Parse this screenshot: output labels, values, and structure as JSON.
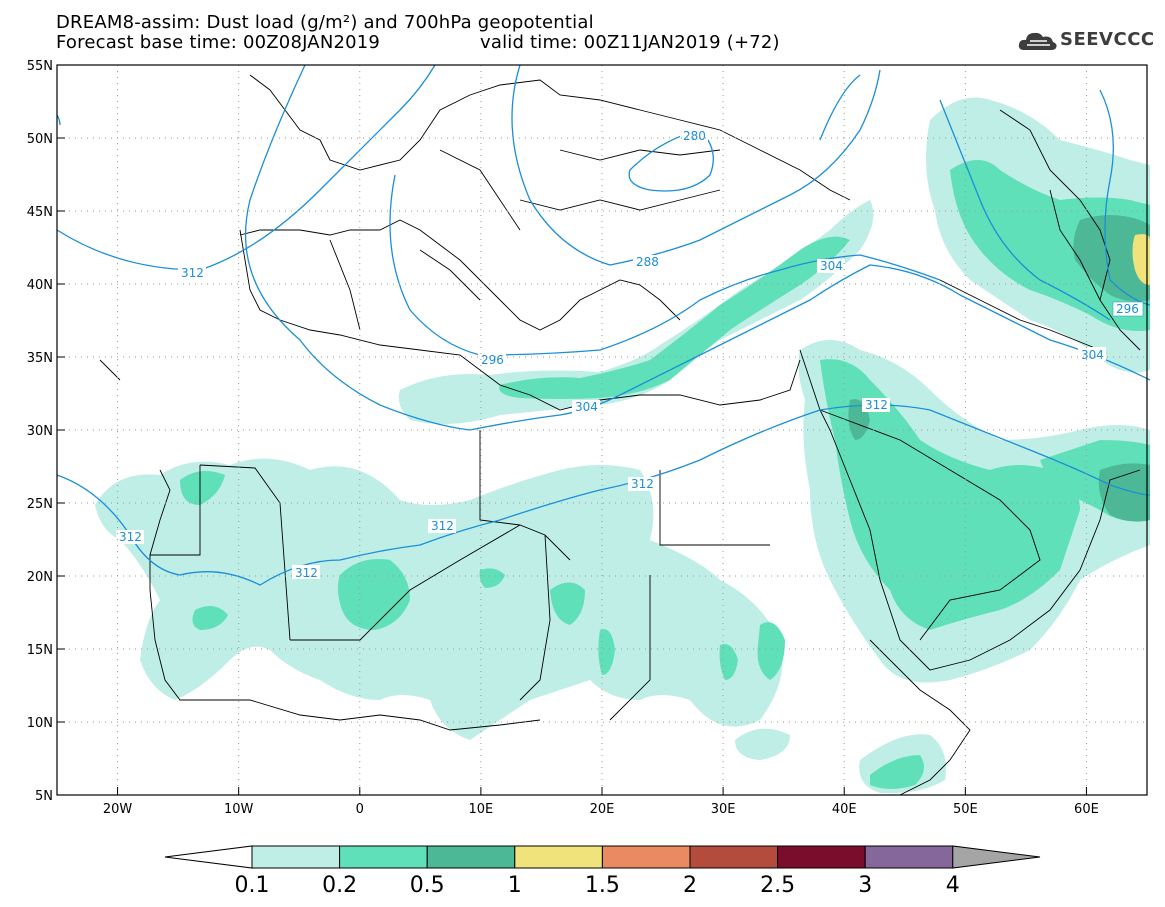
{
  "header": {
    "title_line1": "DREAM8-assim: Dust load (g/m²) and 700hPa geopotential",
    "title_line2_base": "Forecast base time: 00Z08JAN2019",
    "title_line2_valid": "valid time: 00Z11JAN2019 (+72)"
  },
  "logo": {
    "text": "SEEVCCC",
    "icon": "cloud-logo-icon"
  },
  "map": {
    "lat_labels": [
      "55N",
      "50N",
      "45N",
      "40N",
      "35N",
      "30N",
      "25N",
      "20N",
      "15N",
      "10N",
      "5N"
    ],
    "lon_labels": [
      "20W",
      "10W",
      "0",
      "10E",
      "20E",
      "30E",
      "40E",
      "50E",
      "60E"
    ],
    "lat_range": [
      5,
      55
    ],
    "lon_range": [
      -25,
      65
    ],
    "contour_labels": [
      "280",
      "288",
      "296",
      "304",
      "312",
      "304",
      "296",
      "304",
      "312",
      "312",
      "312",
      "312",
      "312"
    ],
    "contour_color": "#1a8fd8"
  },
  "colorbar": {
    "tick_labels": [
      "0.1",
      "0.2",
      "0.5",
      "1",
      "1.5",
      "2",
      "2.5",
      "3",
      "4"
    ],
    "colors": [
      "#ffffff",
      "#bfeee6",
      "#5fe0b8",
      "#4db896",
      "#f0e37c",
      "#e98a62",
      "#b34c3c",
      "#7a0d2c",
      "#86679c",
      "#a5a5a5"
    ]
  }
}
